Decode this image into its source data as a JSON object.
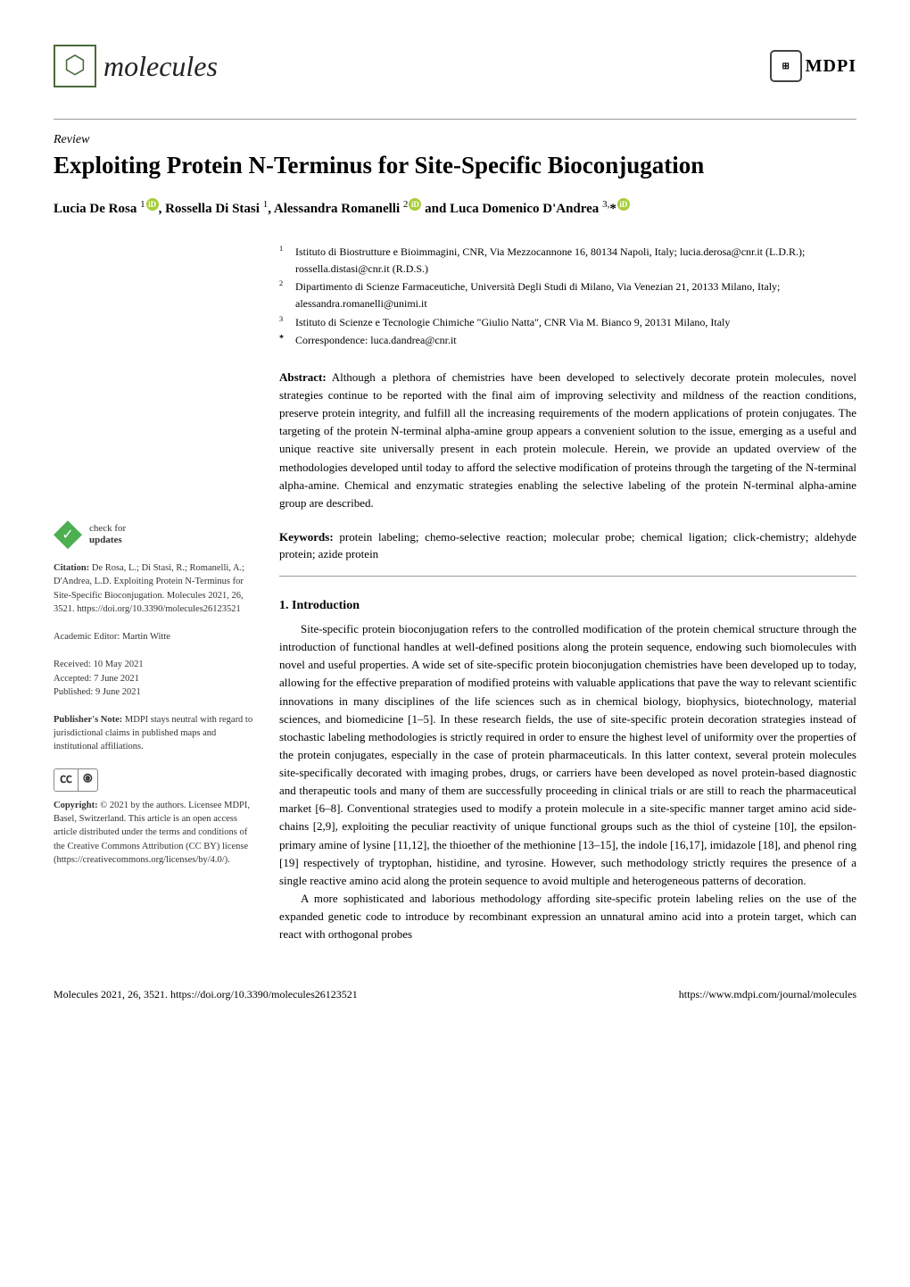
{
  "journal": {
    "name": "molecules",
    "publisher": "MDPI"
  },
  "article_type": "Review",
  "title": "Exploiting Protein N-Terminus for Site-Specific Bioconjugation",
  "authors_line": "Lucia De Rosa ¹, Rossella Di Stasi ¹, Alessandra Romanelli ² and Luca Domenico D'Andrea ³,*",
  "authors": [
    {
      "name": "Lucia De Rosa",
      "sup": "1",
      "orcid": true
    },
    {
      "name": "Rossella Di Stasi",
      "sup": "1",
      "orcid": false
    },
    {
      "name": "Alessandra Romanelli",
      "sup": "2",
      "orcid": true
    },
    {
      "name": "Luca Domenico D'Andrea",
      "sup": "3,*",
      "orcid": true
    }
  ],
  "affiliations": [
    {
      "num": "1",
      "text": "Istituto di Biostrutture e Bioimmagini, CNR, Via Mezzocannone 16, 80134 Napoli, Italy; lucia.derosa@cnr.it (L.D.R.); rossella.distasi@cnr.it (R.D.S.)"
    },
    {
      "num": "2",
      "text": "Dipartimento di Scienze Farmaceutiche, Università Degli Studi di Milano, Via Venezian 21, 20133 Milano, Italy; alessandra.romanelli@unimi.it"
    },
    {
      "num": "3",
      "text": "Istituto di Scienze e Tecnologie Chimiche \"Giulio Natta\", CNR Via M. Bianco 9, 20131 Milano, Italy"
    },
    {
      "num": "*",
      "text": "Correspondence: luca.dandrea@cnr.it"
    }
  ],
  "abstract_label": "Abstract:",
  "abstract": "Although a plethora of chemistries have been developed to selectively decorate protein molecules, novel strategies continue to be reported with the final aim of improving selectivity and mildness of the reaction conditions, preserve protein integrity, and fulfill all the increasing requirements of the modern applications of protein conjugates. The targeting of the protein N-terminal alpha-amine group appears a convenient solution to the issue, emerging as a useful and unique reactive site universally present in each protein molecule. Herein, we provide an updated overview of the methodologies developed until today to afford the selective modification of proteins through the targeting of the N-terminal alpha-amine. Chemical and enzymatic strategies enabling the selective labeling of the protein N-terminal alpha-amine group are described.",
  "keywords_label": "Keywords:",
  "keywords": "protein labeling; chemo-selective reaction; molecular probe; chemical ligation; click-chemistry; aldehyde protein; azide protein",
  "section1": {
    "heading": "1. Introduction",
    "p1": "Site-specific protein bioconjugation refers to the controlled modification of the protein chemical structure through the introduction of functional handles at well-defined positions along the protein sequence, endowing such biomolecules with novel and useful properties. A wide set of site-specific protein bioconjugation chemistries have been developed up to today, allowing for the effective preparation of modified proteins with valuable applications that pave the way to relevant scientific innovations in many disciplines of the life sciences such as in chemical biology, biophysics, biotechnology, material sciences, and biomedicine [1–5]. In these research fields, the use of site-specific protein decoration strategies instead of stochastic labeling methodologies is strictly required in order to ensure the highest level of uniformity over the properties of the protein conjugates, especially in the case of protein pharmaceuticals. In this latter context, several protein molecules site-specifically decorated with imaging probes, drugs, or carriers have been developed as novel protein-based diagnostic and therapeutic tools and many of them are successfully proceeding in clinical trials or are still to reach the pharmaceutical market [6–8]. Conventional strategies used to modify a protein molecule in a site-specific manner target amino acid side-chains [2,9], exploiting the peculiar reactivity of unique functional groups such as the thiol of cysteine [10], the epsilon-primary amine of lysine [11,12], the thioether of the methionine [13–15], the indole [16,17], imidazole [18], and phenol ring [19] respectively of tryptophan, histidine, and tyrosine. However, such methodology strictly requires the presence of a single reactive amino acid along the protein sequence to avoid multiple and heterogeneous patterns of decoration.",
    "p2": "A more sophisticated and laborious methodology affording site-specific protein labeling relies on the use of the expanded genetic code to introduce by recombinant expression an unnatural amino acid into a protein target, which can react with orthogonal probes"
  },
  "sidebar": {
    "check_for": "check for",
    "updates": "updates",
    "citation_label": "Citation:",
    "citation": "De Rosa, L.; Di Stasi, R.; Romanelli, A.; D'Andrea, L.D. Exploiting Protein N-Terminus for Site-Specific Bioconjugation. Molecules 2021, 26, 3521. https://doi.org/10.3390/molecules26123521",
    "editor_label": "Academic Editor:",
    "editor": "Martin Witte",
    "received": "Received: 10 May 2021",
    "accepted": "Accepted: 7 June 2021",
    "published": "Published: 9 June 2021",
    "pubnote_label": "Publisher's Note:",
    "pubnote": "MDPI stays neutral with regard to jurisdictional claims in published maps and institutional affiliations.",
    "copyright_label": "Copyright:",
    "copyright": "© 2021 by the authors. Licensee MDPI, Basel, Switzerland. This article is an open access article distributed under the terms and conditions of the Creative Commons Attribution (CC BY) license (https://creativecommons.org/licenses/by/4.0/)."
  },
  "footer": {
    "left": "Molecules 2021, 26, 3521. https://doi.org/10.3390/molecules26123521",
    "right": "https://www.mdpi.com/journal/molecules"
  },
  "colors": {
    "green": "#4a6b3a",
    "orcid": "#a6ce39",
    "link": "#3a6aa8",
    "divider": "#999999"
  }
}
